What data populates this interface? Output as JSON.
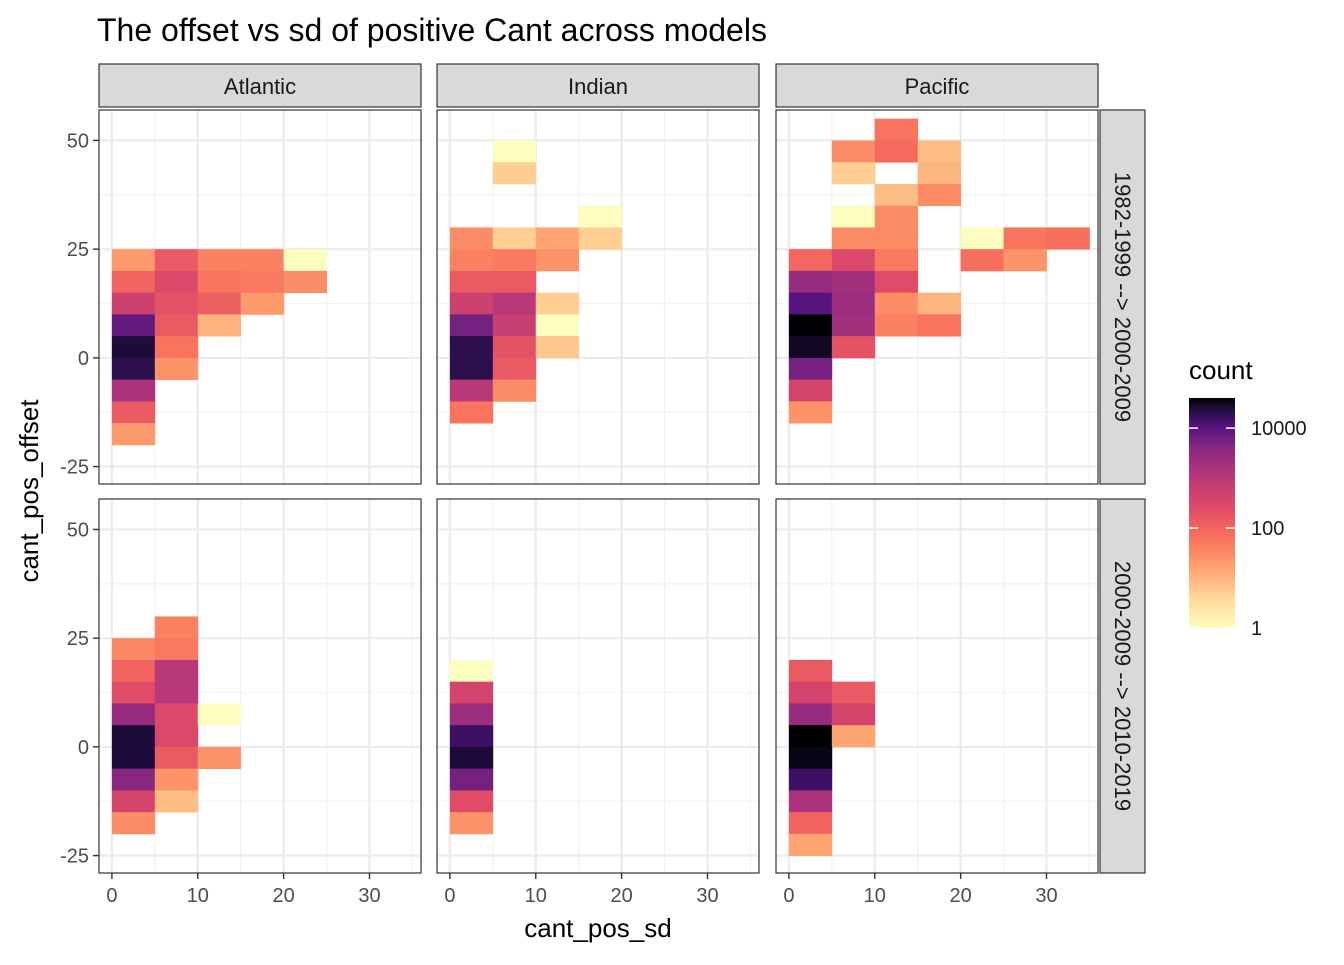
{
  "chart_data": {
    "type": "heatmap",
    "title": "The offset vs sd of positive Cant across models",
    "xlabel": "cant_pos_sd",
    "ylabel": "cant_pos_offset",
    "xlim": [
      -1.5,
      36
    ],
    "ylim": [
      -29,
      57
    ],
    "xticks": [
      0,
      10,
      20,
      30
    ],
    "xtick_labels": [
      "0",
      "10",
      "20",
      "30"
    ],
    "yticks": [
      -25,
      0,
      25,
      50
    ],
    "ytick_labels": [
      "-25",
      "0",
      "25",
      "50"
    ],
    "bin_width_x": 5,
    "bin_height_y": 5,
    "columns": [
      "Atlantic",
      "Indian",
      "Pacific"
    ],
    "rows": [
      "1982-1999 --> 2000-2009",
      "2000-2009 --> 2010-2019"
    ],
    "legend": {
      "title": "count",
      "scale": "log10",
      "range": [
        1,
        40000
      ],
      "breaks": [
        1,
        100,
        10000
      ],
      "break_labels": [
        "1",
        "100",
        "10000"
      ],
      "palette": "magma-reversed",
      "position": "right"
    },
    "cells_format": [
      "sd_bin_start",
      "offset_bin_start",
      "count"
    ],
    "panels": [
      {
        "column": "Atlantic",
        "row": "1982-1999 --> 2000-2009",
        "cells": [
          [
            0,
            20,
            20
          ],
          [
            5,
            20,
            150
          ],
          [
            10,
            20,
            40
          ],
          [
            15,
            20,
            40
          ],
          [
            20,
            20,
            1
          ],
          [
            0,
            15,
            100
          ],
          [
            5,
            15,
            300
          ],
          [
            10,
            15,
            60
          ],
          [
            15,
            15,
            50
          ],
          [
            20,
            15,
            30
          ],
          [
            0,
            10,
            500
          ],
          [
            5,
            10,
            200
          ],
          [
            10,
            10,
            120
          ],
          [
            15,
            10,
            20
          ],
          [
            0,
            5,
            8000
          ],
          [
            5,
            5,
            150
          ],
          [
            10,
            5,
            10
          ],
          [
            0,
            0,
            25000
          ],
          [
            5,
            0,
            60
          ],
          [
            0,
            -5,
            20000
          ],
          [
            5,
            -5,
            25
          ],
          [
            0,
            -10,
            1500
          ],
          [
            0,
            -15,
            150
          ],
          [
            0,
            -20,
            20
          ]
        ]
      },
      {
        "column": "Indian",
        "row": "1982-1999 --> 2000-2009",
        "cells": [
          [
            5,
            45,
            1
          ],
          [
            5,
            40,
            5
          ],
          [
            15,
            30,
            1
          ],
          [
            0,
            25,
            30
          ],
          [
            5,
            25,
            5
          ],
          [
            10,
            25,
            15
          ],
          [
            15,
            25,
            5
          ],
          [
            0,
            20,
            40
          ],
          [
            5,
            20,
            50
          ],
          [
            10,
            20,
            25
          ],
          [
            0,
            15,
            150
          ],
          [
            5,
            15,
            150
          ],
          [
            0,
            10,
            500
          ],
          [
            5,
            10,
            1000
          ],
          [
            10,
            10,
            5
          ],
          [
            0,
            5,
            6000
          ],
          [
            5,
            5,
            600
          ],
          [
            10,
            5,
            1
          ],
          [
            0,
            0,
            20000
          ],
          [
            5,
            0,
            200
          ],
          [
            10,
            0,
            6
          ],
          [
            0,
            -5,
            20000
          ],
          [
            5,
            -5,
            150
          ],
          [
            0,
            -10,
            1000
          ],
          [
            5,
            -10,
            30
          ],
          [
            0,
            -15,
            60
          ]
        ]
      },
      {
        "column": "Pacific",
        "row": "1982-1999 --> 2000-2009",
        "cells": [
          [
            10,
            50,
            60
          ],
          [
            5,
            45,
            30
          ],
          [
            10,
            45,
            80
          ],
          [
            15,
            45,
            8
          ],
          [
            5,
            40,
            5
          ],
          [
            15,
            40,
            10
          ],
          [
            10,
            35,
            8
          ],
          [
            15,
            35,
            30
          ],
          [
            5,
            30,
            1
          ],
          [
            10,
            30,
            30
          ],
          [
            5,
            25,
            30
          ],
          [
            10,
            25,
            30
          ],
          [
            20,
            25,
            1
          ],
          [
            25,
            25,
            60
          ],
          [
            30,
            25,
            70
          ],
          [
            0,
            20,
            90
          ],
          [
            5,
            20,
            300
          ],
          [
            10,
            20,
            50
          ],
          [
            20,
            20,
            70
          ],
          [
            25,
            20,
            25
          ],
          [
            0,
            15,
            3000
          ],
          [
            5,
            15,
            2000
          ],
          [
            10,
            15,
            250
          ],
          [
            0,
            10,
            10000
          ],
          [
            5,
            10,
            2500
          ],
          [
            10,
            10,
            30
          ],
          [
            15,
            10,
            10
          ],
          [
            0,
            5,
            40000
          ],
          [
            5,
            5,
            2000
          ],
          [
            10,
            5,
            40
          ],
          [
            15,
            5,
            60
          ],
          [
            0,
            0,
            30000
          ],
          [
            5,
            0,
            200
          ],
          [
            0,
            -5,
            6000
          ],
          [
            0,
            -10,
            400
          ],
          [
            0,
            -15,
            25
          ]
        ]
      },
      {
        "column": "Atlantic",
        "row": "2000-2009 --> 2010-2019",
        "cells": [
          [
            5,
            25,
            40
          ],
          [
            0,
            20,
            35
          ],
          [
            5,
            20,
            50
          ],
          [
            0,
            15,
            100
          ],
          [
            5,
            15,
            1000
          ],
          [
            0,
            10,
            250
          ],
          [
            5,
            10,
            1000
          ],
          [
            0,
            5,
            3000
          ],
          [
            5,
            5,
            300
          ],
          [
            10,
            5,
            1
          ],
          [
            0,
            0,
            25000
          ],
          [
            5,
            0,
            300
          ],
          [
            0,
            -5,
            25000
          ],
          [
            5,
            -5,
            150
          ],
          [
            10,
            -5,
            25
          ],
          [
            0,
            -10,
            4000
          ],
          [
            5,
            -10,
            25
          ],
          [
            0,
            -15,
            400
          ],
          [
            5,
            -15,
            8
          ],
          [
            0,
            -20,
            30
          ]
        ]
      },
      {
        "column": "Indian",
        "row": "2000-2009 --> 2010-2019",
        "cells": [
          [
            0,
            15,
            1
          ],
          [
            0,
            10,
            400
          ],
          [
            0,
            5,
            2500
          ],
          [
            0,
            0,
            15000
          ],
          [
            0,
            -5,
            25000
          ],
          [
            0,
            -10,
            6000
          ],
          [
            0,
            -15,
            250
          ],
          [
            0,
            -20,
            25
          ]
        ]
      },
      {
        "column": "Pacific",
        "row": "2000-2009 --> 2010-2019",
        "cells": [
          [
            0,
            15,
            150
          ],
          [
            0,
            10,
            400
          ],
          [
            5,
            10,
            150
          ],
          [
            0,
            5,
            3000
          ],
          [
            5,
            5,
            400
          ],
          [
            0,
            0,
            40000
          ],
          [
            5,
            0,
            15
          ],
          [
            0,
            -5,
            35000
          ],
          [
            0,
            -10,
            15000
          ],
          [
            0,
            -15,
            1500
          ],
          [
            0,
            -20,
            100
          ],
          [
            0,
            -25,
            15
          ]
        ]
      }
    ]
  }
}
